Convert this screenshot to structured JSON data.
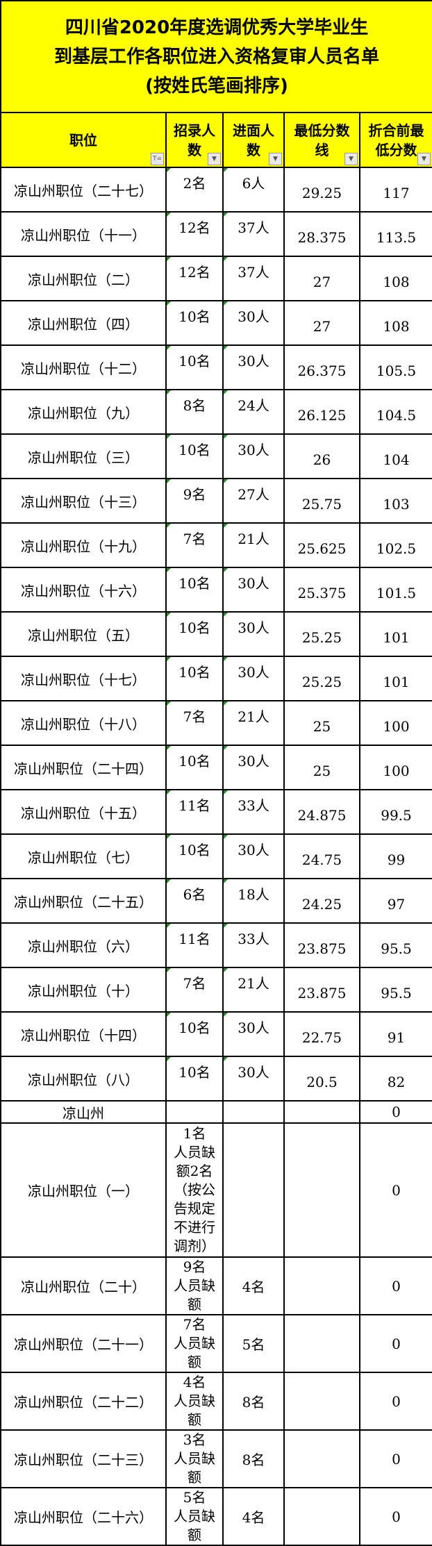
{
  "title": [
    "四川省2020年度选调优秀大学毕业生",
    "到基层工作各职位进入资格复审人员名单",
    "(按姓氏笔画排序)"
  ],
  "headers": [
    {
      "line1": "职位",
      "line2": "",
      "icon": "filter-icon"
    },
    {
      "line1": "招录人",
      "line2": "数",
      "icon": "dropdown-icon"
    },
    {
      "line1": "进面人",
      "line2": "数",
      "icon": "dropdown-icon"
    },
    {
      "line1": "最低分数",
      "line2": "线",
      "icon": "dropdown-icon"
    },
    {
      "line1": "折合前最",
      "line2": "低分数",
      "icon": "dropdown-icon"
    }
  ],
  "rows": [
    [
      "凉山州职位（二十七）",
      "2名",
      "6人",
      "29.25",
      "117"
    ],
    [
      "凉山州职位（十一）",
      "12名",
      "37人",
      "28.375",
      "113.5"
    ],
    [
      "凉山州职位（二）",
      "12名",
      "37人",
      "27",
      "108"
    ],
    [
      "凉山州职位（四）",
      "10名",
      "30人",
      "27",
      "108"
    ],
    [
      "凉山州职位（十二）",
      "10名",
      "30人",
      "26.375",
      "105.5"
    ],
    [
      "凉山州职位（九）",
      "8名",
      "24人",
      "26.125",
      "104.5"
    ],
    [
      "凉山州职位（三）",
      "10名",
      "30人",
      "26",
      "104"
    ],
    [
      "凉山州职位（十三）",
      "9名",
      "27人",
      "25.75",
      "103"
    ],
    [
      "凉山州职位（十九）",
      "7名",
      "21人",
      "25.625",
      "102.5"
    ],
    [
      "凉山州职位（十六）",
      "10名",
      "30人",
      "25.375",
      "101.5"
    ],
    [
      "凉山州职位（五）",
      "10名",
      "30人",
      "25.25",
      "101"
    ],
    [
      "凉山州职位（十七）",
      "10名",
      "30人",
      "25.25",
      "101"
    ],
    [
      "凉山州职位（十八）",
      "7名",
      "21人",
      "25",
      "100"
    ],
    [
      "凉山州职位（二十四）",
      "10名",
      "30人",
      "25",
      "100"
    ],
    [
      "凉山州职位（十五）",
      "11名",
      "33人",
      "24.875",
      "99.5"
    ],
    [
      "凉山州职位（七）",
      "10名",
      "30人",
      "24.75",
      "99"
    ],
    [
      "凉山州职位（二十五）",
      "6名",
      "18人",
      "24.25",
      "97"
    ],
    [
      "凉山州职位（六）",
      "11名",
      "33人",
      "23.875",
      "95.5"
    ],
    [
      "凉山州职位（十）",
      "7名",
      "21人",
      "23.875",
      "95.5"
    ],
    [
      "凉山州职位（十四）",
      "10名",
      "30人",
      "22.75",
      "91"
    ],
    [
      "凉山州职位（八）",
      "10名",
      "30人",
      "20.5",
      "82"
    ]
  ],
  "special_rows": [
    {
      "position": "凉山州",
      "recruit": [],
      "interview": "",
      "min": "",
      "pre": "0"
    },
    {
      "position": "凉山州职位（一）",
      "recruit": [
        "1名",
        "人员缺",
        "额2名",
        "（按公",
        "告规定",
        "不进行",
        "调剂）"
      ],
      "interview": "",
      "min": "",
      "pre": "0"
    },
    {
      "position": "凉山州职位（二十）",
      "recruit": [
        "9名",
        "人员缺",
        "额"
      ],
      "interview": "4名",
      "min": "",
      "pre": "0"
    },
    {
      "position": "凉山州职位（二十一）",
      "recruit": [
        "7名",
        "人员缺",
        "额"
      ],
      "interview": "5名",
      "min": "",
      "pre": "0"
    },
    {
      "position": "凉山州职位（二十二）",
      "recruit": [
        "4名",
        "人员缺",
        "额"
      ],
      "interview": "8名",
      "min": "",
      "pre": "0"
    },
    {
      "position": "凉山州职位（二十三）",
      "recruit": [
        "3名",
        "人员缺",
        "额"
      ],
      "interview": "8名",
      "min": "",
      "pre": "0"
    },
    {
      "position": "凉山州职位（二十六）",
      "recruit": [
        "5名",
        "人员缺",
        "额"
      ],
      "interview": "4名",
      "min": "",
      "pre": "0"
    }
  ],
  "colors": {
    "header_bg": "#ffff00",
    "border": "#000000"
  }
}
